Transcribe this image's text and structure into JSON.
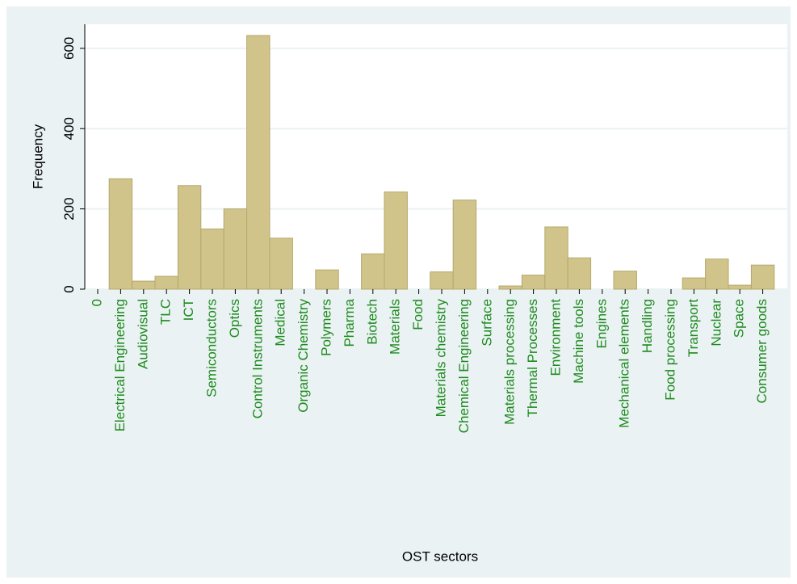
{
  "chart_data": {
    "type": "bar",
    "x_label": "OST sectors",
    "y_label": "Frequency",
    "categories": [
      "0",
      "Electrical Engineering",
      "Audiovisual",
      "TLC",
      "ICT",
      "Semiconductors",
      "Optics",
      "Control Instruments",
      "Medical",
      "Organic Chemistry",
      "Polymers",
      "Pharma",
      "Biotech",
      "Materials",
      "Food",
      "Materials chemistry",
      "Chemical Engineering",
      "Surface",
      "Materials processing",
      "Thermal Processes",
      "Environment",
      "Machine tools",
      "Engines",
      "Mechanical elements",
      "Handling",
      "Food processing",
      "Transport",
      "Nuclear",
      "Space",
      "Consumer goods"
    ],
    "values": [
      0,
      275,
      20,
      32,
      258,
      150,
      200,
      632,
      127,
      0,
      48,
      0,
      88,
      242,
      0,
      43,
      222,
      0,
      8,
      35,
      155,
      78,
      0,
      45,
      0,
      0,
      28,
      75,
      10,
      60
    ],
    "color": "#d0c48a",
    "ylim": [
      0,
      660
    ],
    "yticks": [
      0,
      200,
      400,
      600
    ],
    "grid": true
  }
}
